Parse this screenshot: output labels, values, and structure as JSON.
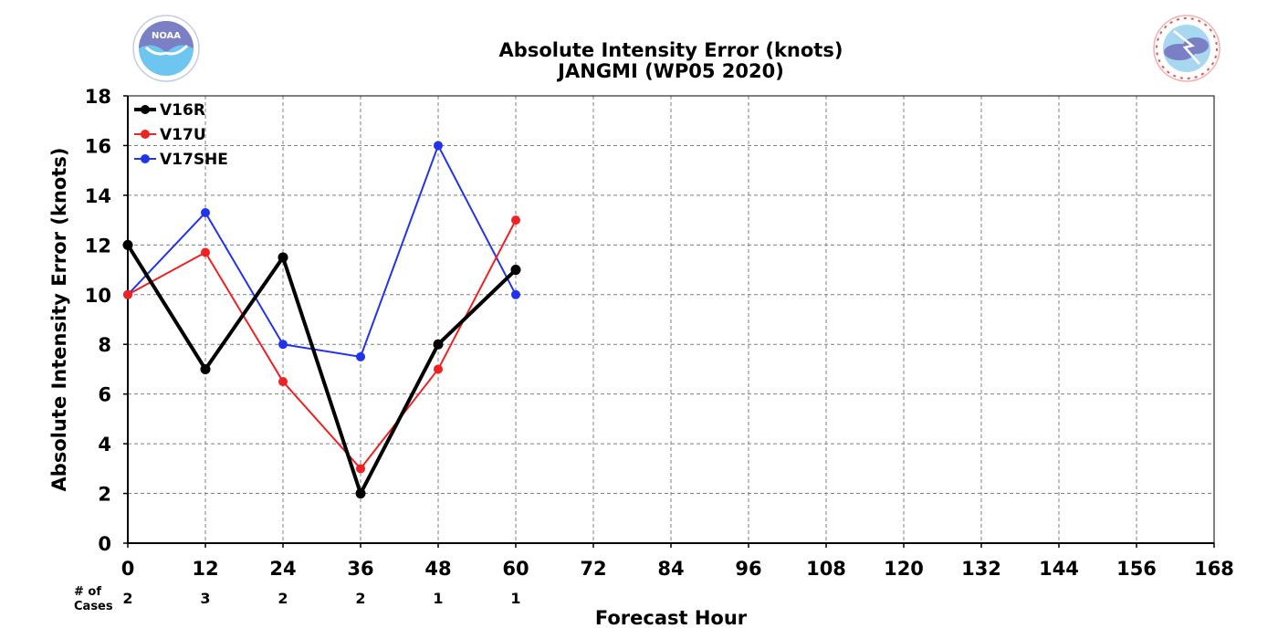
{
  "chart_data": {
    "type": "line",
    "title": "Absolute Intensity Error (knots)",
    "subtitle": "JANGMI (WP05 2020)",
    "xlabel": "Forecast Hour",
    "ylabel": "Absolute Intensity Error (knots)",
    "xlim": [
      0,
      168
    ],
    "ylim": [
      0,
      18
    ],
    "x_ticks": [
      0,
      12,
      24,
      36,
      48,
      60,
      72,
      84,
      96,
      108,
      120,
      132,
      144,
      156,
      168
    ],
    "y_ticks": [
      0,
      2,
      4,
      6,
      8,
      10,
      12,
      14,
      16,
      18
    ],
    "grid": true,
    "legend_position": "top-left",
    "cases_label": [
      "# of",
      "Cases"
    ],
    "cases": [
      {
        "x": 0,
        "n": "2"
      },
      {
        "x": 12,
        "n": "3"
      },
      {
        "x": 24,
        "n": "2"
      },
      {
        "x": 36,
        "n": "2"
      },
      {
        "x": 48,
        "n": "1"
      },
      {
        "x": 60,
        "n": "1"
      }
    ],
    "series": [
      {
        "name": "V16R",
        "color": "#000000",
        "x": [
          0,
          12,
          24,
          36,
          48,
          60
        ],
        "values": [
          12,
          7,
          11.5,
          2,
          8,
          11
        ]
      },
      {
        "name": "V17U",
        "color": "#ee2222",
        "x": [
          0,
          12,
          24,
          36,
          48,
          60
        ],
        "values": [
          10,
          11.7,
          6.5,
          3,
          7,
          13
        ]
      },
      {
        "name": "V17SHE",
        "color": "#2233ee",
        "x": [
          0,
          12,
          24,
          36,
          48,
          60
        ],
        "values": [
          10,
          13.3,
          8,
          7.5,
          16,
          10
        ]
      }
    ]
  },
  "logos": {
    "left": {
      "name": "noaa-logo",
      "text": "NOAA",
      "colors": [
        "#7b7fc4",
        "#6ec6f0"
      ]
    },
    "right": {
      "name": "nws-logo",
      "text": "NATIONAL WEATHER SERVICE",
      "colors": [
        "#e05a5a",
        "#7b7fc4",
        "#a8d8f0"
      ]
    }
  }
}
